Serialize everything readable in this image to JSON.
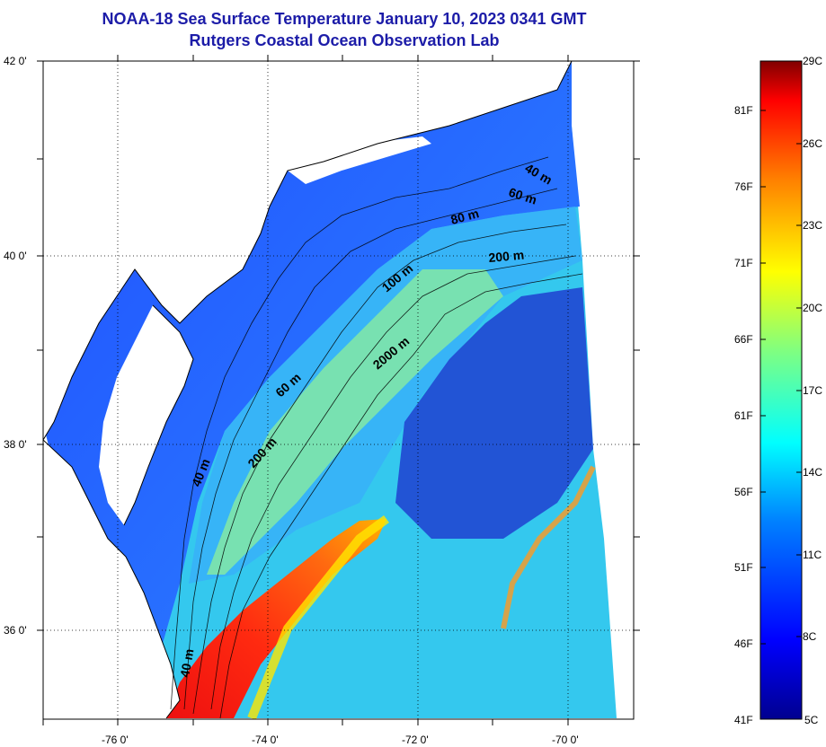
{
  "title": "NOAA-18 Sea Surface Temperature January 10, 2023 0341 GMT",
  "subtitle": "Rutgers Coastal Ocean Observation Lab",
  "map": {
    "lat_labels": [
      "42 0'",
      "40 0'",
      "38 0'",
      "36 0'"
    ],
    "lon_labels": [
      "-76 0'",
      "-74 0'",
      "-72 0'",
      "-70 0'"
    ],
    "contour_labels": [
      "40 m",
      "60 m",
      "80 m",
      "200 m",
      "100 m",
      "2000 m",
      "60 m",
      "200 m",
      "40 m",
      "40 m"
    ]
  },
  "colorbar": {
    "fahrenheit": [
      "81F",
      "76F",
      "71F",
      "66F",
      "61F",
      "56F",
      "51F",
      "46F",
      "41F"
    ],
    "celsius": [
      "29C",
      "26C",
      "23C",
      "20C",
      "17C",
      "14C",
      "11C",
      "8C",
      "5C"
    ]
  },
  "colors": {
    "title": "#1c1ca8",
    "cold": "#000080",
    "warm": "#800000"
  }
}
